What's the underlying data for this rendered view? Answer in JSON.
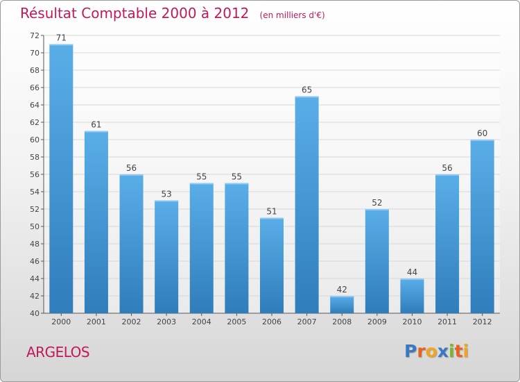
{
  "header": {
    "title": "Résultat Comptable 2000 à 2012",
    "subtitle": "(en milliers d'€)"
  },
  "footer": {
    "location": "ARGELOS",
    "logo_text": "Proxiti",
    "logo_letters": [
      {
        "char": "P",
        "color": "#3a78c4"
      },
      {
        "char": "r",
        "color": "#e8621e"
      },
      {
        "char": "o",
        "color": "#f1a323"
      },
      {
        "char": "x",
        "color": "#3a78c4"
      },
      {
        "char": "i",
        "color": "#79b531"
      },
      {
        "char": "t",
        "color": "#e8621e"
      },
      {
        "char": "i",
        "color": "#f1a323"
      }
    ]
  },
  "colors": {
    "title": "#c2185b",
    "bar_light": "#5aaee8",
    "bar_dark": "#2f7dbb",
    "grid": "#d7d7d7",
    "axis": "#555555"
  },
  "chart_data": {
    "type": "bar",
    "title": "Résultat Comptable 2000 à 2012",
    "xlabel": "",
    "ylabel": "",
    "categories": [
      "2000",
      "2001",
      "2002",
      "2003",
      "2004",
      "2005",
      "2006",
      "2007",
      "2008",
      "2009",
      "2010",
      "2011",
      "2012"
    ],
    "values": [
      71,
      61,
      56,
      53,
      55,
      55,
      51,
      65,
      42,
      52,
      44,
      56,
      60
    ],
    "ylim": [
      40,
      72
    ],
    "yticks": [
      40,
      42,
      44,
      46,
      48,
      50,
      52,
      54,
      56,
      58,
      60,
      62,
      64,
      66,
      68,
      70,
      72
    ],
    "grid": true,
    "legend": "none"
  }
}
